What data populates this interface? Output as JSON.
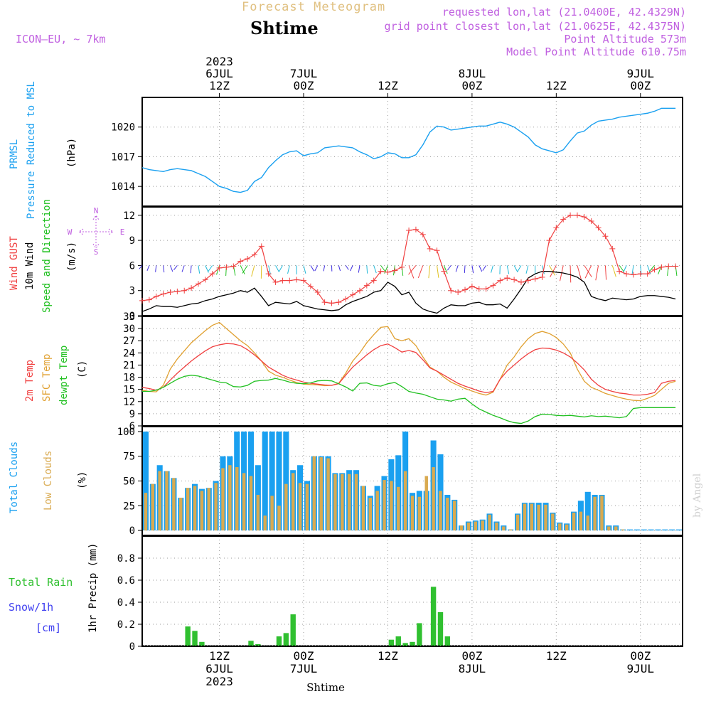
{
  "header": {
    "title_top": "Forecast Meteogram",
    "location": "Shtime",
    "model": "ICON—EU, ~ 7km",
    "requested": "requested lon,lat (21.0400E, 42.4329N)",
    "gridpoint": "grid point closest lon,lat (21.0625E, 42.4375N)",
    "point_alt": "Point Altitude 573m",
    "model_alt": "Model Point Altitude 610.75m",
    "watermark": "by Angel",
    "footer": "Shtime"
  },
  "colors": {
    "pressure": "#1aa0f0",
    "gust": "#f04040",
    "wind": "#000000",
    "temp": "#f04040",
    "sfc": "#e0a030",
    "dewpt": "#20c020",
    "total_clouds": "#1aa0f0",
    "low_clouds": "#d9aa50",
    "rain": "#30c030",
    "snow": "#4040f0",
    "header": "#c060e0"
  },
  "chart_data": {
    "time_axis": {
      "start_hour": 0,
      "end_hour": 77,
      "top_ticks": [
        {
          "hour": 11,
          "lines": [
            "2023",
            "6JUL",
            "12Z"
          ]
        },
        {
          "hour": 23,
          "lines": [
            "7JUL",
            "00Z"
          ]
        },
        {
          "hour": 35,
          "lines": [
            "12Z"
          ]
        },
        {
          "hour": 47,
          "lines": [
            "8JUL",
            "00Z"
          ]
        },
        {
          "hour": 59,
          "lines": [
            "12Z"
          ]
        },
        {
          "hour": 71,
          "lines": [
            "9JUL",
            "00Z"
          ]
        }
      ],
      "bottom_ticks": [
        {
          "hour": 11,
          "lines": [
            "12Z",
            "6JUL",
            "2023"
          ]
        },
        {
          "hour": 23,
          "lines": [
            "00Z",
            "7JUL"
          ]
        },
        {
          "hour": 35,
          "lines": [
            "12Z"
          ]
        },
        {
          "hour": 47,
          "lines": [
            "00Z",
            "8JUL"
          ]
        },
        {
          "hour": 59,
          "lines": [
            "12Z"
          ]
        },
        {
          "hour": 71,
          "lines": [
            "00Z",
            "9JUL"
          ]
        }
      ]
    },
    "panels": {
      "pressure": {
        "type": "line",
        "labels": [
          "PRMSL",
          "Pressure Reduced to MSL"
        ],
        "unit": "(hPa)",
        "ylim": [
          1012,
          1023
        ],
        "ticks": [
          1014,
          1017,
          1020
        ],
        "series": [
          {
            "name": "PRMSL",
            "x": [
              0,
              1,
              2,
              3,
              4,
              5,
              6,
              7,
              8,
              9,
              10,
              11,
              12,
              13,
              14,
              15,
              16,
              17,
              18,
              19,
              20,
              21,
              22,
              23,
              24,
              25,
              26,
              27,
              28,
              29,
              30,
              31,
              32,
              33,
              34,
              35,
              36,
              37,
              38,
              39,
              40,
              41,
              42,
              43,
              44,
              45,
              46,
              47,
              48,
              49,
              50,
              51,
              52,
              53,
              54,
              55,
              56,
              57,
              58,
              59,
              60,
              61,
              62,
              63,
              64,
              65,
              66,
              67,
              68,
              69,
              70,
              71,
              72,
              73,
              74,
              75,
              76
            ],
            "values": [
              1015.9,
              1015.7,
              1015.6,
              1015.5,
              1015.7,
              1015.8,
              1015.7,
              1015.6,
              1015.3,
              1015.0,
              1014.5,
              1014.0,
              1013.8,
              1013.5,
              1013.4,
              1013.6,
              1014.5,
              1014.9,
              1015.9,
              1016.6,
              1017.2,
              1017.5,
              1017.6,
              1017.1,
              1017.3,
              1017.4,
              1017.9,
              1018.0,
              1018.1,
              1018.0,
              1017.9,
              1017.5,
              1017.2,
              1016.8,
              1017.0,
              1017.4,
              1017.3,
              1016.9,
              1016.9,
              1017.2,
              1018.2,
              1019.5,
              1020.1,
              1020.0,
              1019.7,
              1019.8,
              1019.9,
              1020.0,
              1020.1,
              1020.1,
              1020.3,
              1020.5,
              1020.3,
              1020.0,
              1019.5,
              1019.0,
              1018.2,
              1017.8,
              1017.6,
              1017.4,
              1017.7,
              1018.6,
              1019.4,
              1019.6,
              1020.2,
              1020.6,
              1020.7,
              1020.8,
              1021.0,
              1021.1,
              1021.2,
              1021.3,
              1021.4,
              1021.6,
              1021.9,
              1021.9,
              1021.9
            ]
          }
        ]
      },
      "wind": {
        "type": "line",
        "labels": [
          "Wind GUST",
          "10m Wind",
          "Speed and Direction"
        ],
        "unit": "(m/s)",
        "compass": {
          "n": "N",
          "s": "S",
          "w": "W",
          "e": "E"
        },
        "ylim": [
          0,
          13
        ],
        "ticks": [
          0,
          3,
          6,
          9,
          12
        ],
        "gust": [
          1.8,
          1.9,
          2.3,
          2.6,
          2.8,
          2.9,
          3.0,
          3.3,
          3.8,
          4.3,
          5.0,
          5.7,
          5.8,
          5.9,
          6.5,
          6.8,
          7.3,
          8.3,
          5.0,
          4.0,
          4.2,
          4.2,
          4.3,
          4.2,
          3.5,
          2.8,
          1.6,
          1.5,
          1.6,
          2.0,
          2.5,
          3.0,
          3.6,
          4.2,
          5.3,
          5.2,
          5.4,
          5.8,
          10.2,
          10.3,
          9.7,
          8.0,
          7.8,
          5.3,
          3.0,
          2.8,
          3.1,
          3.5,
          3.2,
          3.2,
          3.6,
          4.2,
          4.5,
          4.3,
          4.0,
          4.2,
          4.4,
          4.6,
          9.0,
          10.5,
          11.5,
          12.0,
          12.0,
          11.8,
          11.3,
          10.5,
          9.5,
          8.0,
          5.3,
          5.0,
          4.9,
          5.0,
          5.0,
          5.5,
          5.8,
          5.9,
          5.9
        ],
        "wind": [
          0.5,
          0.8,
          1.2,
          1.1,
          1.1,
          1.0,
          1.2,
          1.4,
          1.5,
          1.8,
          2.0,
          2.3,
          2.5,
          2.7,
          3.0,
          2.8,
          3.3,
          2.3,
          1.2,
          1.6,
          1.5,
          1.4,
          1.7,
          1.2,
          1.0,
          0.8,
          0.7,
          0.6,
          0.7,
          1.3,
          1.7,
          2.0,
          2.3,
          2.8,
          3.0,
          4.0,
          3.5,
          2.5,
          2.8,
          1.5,
          0.8,
          0.5,
          0.3,
          0.9,
          1.3,
          1.2,
          1.2,
          1.5,
          1.6,
          1.3,
          1.3,
          1.4,
          0.9,
          2.0,
          3.2,
          4.5,
          5.0,
          5.3,
          5.3,
          5.2,
          5.1,
          4.9,
          4.6,
          4.0,
          2.3,
          2.0,
          1.8,
          2.1,
          2.0,
          1.9,
          2.0,
          2.3,
          2.4,
          2.4,
          2.3,
          2.2,
          2.0
        ],
        "barb_colors": [
          "#4030e0",
          "#20b8d8",
          "#20c020",
          "#e0c020",
          "#f04040"
        ]
      },
      "temperature": {
        "type": "line",
        "labels": [
          "2m Temp",
          "SFC Temp",
          "dewpt Temp"
        ],
        "unit": "(C)",
        "ylim": [
          6,
          33
        ],
        "ticks": [
          6,
          9,
          12,
          15,
          18,
          21,
          24,
          27,
          30,
          33
        ],
        "temp2m": [
          15.5,
          15.2,
          14.8,
          15.5,
          17.3,
          19.0,
          20.5,
          22.0,
          23.3,
          24.5,
          25.5,
          26.0,
          26.3,
          26.2,
          25.8,
          24.8,
          23.5,
          22.0,
          20.5,
          19.5,
          18.5,
          17.8,
          17.3,
          16.8,
          16.5,
          16.3,
          16.1,
          16.0,
          16.4,
          18.5,
          20.5,
          22.0,
          23.5,
          24.8,
          25.8,
          26.2,
          25.3,
          24.2,
          24.6,
          24.1,
          22.3,
          20.3,
          19.5,
          18.5,
          17.5,
          16.5,
          15.8,
          15.2,
          14.6,
          14.2,
          14.5,
          17.5,
          19.5,
          21.0,
          22.5,
          23.8,
          24.8,
          25.2,
          25.1,
          24.7,
          24.0,
          23.0,
          21.5,
          19.8,
          17.5,
          16.0,
          15.0,
          14.5,
          14.1,
          13.9,
          13.6,
          13.6,
          13.8,
          14.2,
          16.5,
          17.0,
          17.2
        ],
        "sfc": [
          14.8,
          14.5,
          14.4,
          16.0,
          20.0,
          22.5,
          24.5,
          26.5,
          28.0,
          29.5,
          30.8,
          31.5,
          30.0,
          28.5,
          27.0,
          25.8,
          24.0,
          22.0,
          19.5,
          18.5,
          18.0,
          17.3,
          16.7,
          16.3,
          16.2,
          16.1,
          15.9,
          16.0,
          16.5,
          19.0,
          22.0,
          24.0,
          26.5,
          28.5,
          30.3,
          30.5,
          27.5,
          27.0,
          27.5,
          25.8,
          23.0,
          20.5,
          19.5,
          18.0,
          16.8,
          16.0,
          15.2,
          14.6,
          14.0,
          13.6,
          14.3,
          17.5,
          21.0,
          23.0,
          25.5,
          27.5,
          28.8,
          29.3,
          28.8,
          27.8,
          26.2,
          24.0,
          20.0,
          17.0,
          15.5,
          14.8,
          14.0,
          13.5,
          13.0,
          12.6,
          12.3,
          12.2,
          12.8,
          13.5,
          15.0,
          16.5,
          17.0
        ],
        "dewpt": [
          14.5,
          14.5,
          14.8,
          15.5,
          16.5,
          17.5,
          18.2,
          18.5,
          18.3,
          17.8,
          17.3,
          16.8,
          16.6,
          15.7,
          15.6,
          16.0,
          17.0,
          17.2,
          17.3,
          17.7,
          17.3,
          16.8,
          16.5,
          16.4,
          16.6,
          17.1,
          17.2,
          17.1,
          16.4,
          15.6,
          14.6,
          16.5,
          16.6,
          16.0,
          15.8,
          16.4,
          16.7,
          15.7,
          14.5,
          14.1,
          13.8,
          13.2,
          12.6,
          12.4,
          12.1,
          12.6,
          12.8,
          11.4,
          10.2,
          9.4,
          8.6,
          8.0,
          7.3,
          6.8,
          6.6,
          7.2,
          8.3,
          8.9,
          8.8,
          8.6,
          8.5,
          8.6,
          8.4,
          8.2,
          8.5,
          8.3,
          8.4,
          8.2,
          8.0,
          8.3,
          10.3,
          10.5,
          10.5,
          10.5,
          10.5,
          10.5,
          10.5
        ]
      },
      "clouds": {
        "type": "bar",
        "labels": [
          "Total Clouds",
          "Low Clouds"
        ],
        "unit": "(%)",
        "ylim": [
          -5,
          105
        ],
        "ticks": [
          0,
          25,
          50,
          75,
          100
        ],
        "total": [
          100,
          47,
          66,
          60,
          53,
          33,
          43,
          47,
          42,
          43,
          50,
          75,
          75,
          100,
          100,
          100,
          66,
          100,
          100,
          100,
          100,
          61,
          66,
          50,
          75,
          75,
          75,
          58,
          58,
          61,
          61,
          45,
          35,
          45,
          55,
          72,
          76,
          100,
          38,
          40,
          40,
          91,
          77,
          36,
          31,
          5,
          9,
          10,
          11,
          17,
          9,
          5,
          1,
          17,
          28,
          28,
          28,
          28,
          18,
          8,
          7,
          19,
          30,
          39,
          36,
          36,
          5,
          5,
          1,
          1,
          1,
          1,
          1,
          1,
          1,
          1,
          1
        ],
        "low": [
          38,
          47,
          60,
          60,
          53,
          33,
          43,
          45,
          40,
          43,
          48,
          63,
          66,
          64,
          58,
          55,
          36,
          15,
          35,
          25,
          47,
          58,
          48,
          47,
          75,
          74,
          73,
          57,
          57,
          57,
          57,
          45,
          33,
          40,
          51,
          50,
          44,
          60,
          35,
          34,
          55,
          64,
          40,
          33,
          30,
          5,
          8,
          9,
          10,
          16,
          8,
          4,
          1,
          16,
          27,
          27,
          26,
          26,
          17,
          7,
          6,
          18,
          19,
          15,
          34,
          35,
          4,
          4,
          1,
          0,
          0,
          0,
          0,
          0,
          0,
          0,
          0
        ]
      },
      "precip": {
        "type": "bar",
        "labels": [
          "Total  Rain",
          "Snow/1h",
          "[cm]"
        ],
        "unit": "1hr Precip (mm)",
        "ylim": [
          0,
          1.0
        ],
        "ticks": [
          0,
          0.2,
          0.4,
          0.6,
          0.8
        ],
        "tick_labels": [
          "0",
          "0.2",
          "0.4",
          "0.6",
          "0.8"
        ],
        "hours": [
          6,
          7,
          8,
          15,
          16,
          19,
          20,
          21,
          35,
          36,
          37,
          38,
          39,
          41,
          42,
          43
        ],
        "values": [
          0.18,
          0.14,
          0.04,
          0.05,
          0.02,
          0.09,
          0.12,
          0.29,
          0.06,
          0.09,
          0.03,
          0.04,
          0.21,
          0.54,
          0.31,
          0.09
        ]
      }
    }
  }
}
